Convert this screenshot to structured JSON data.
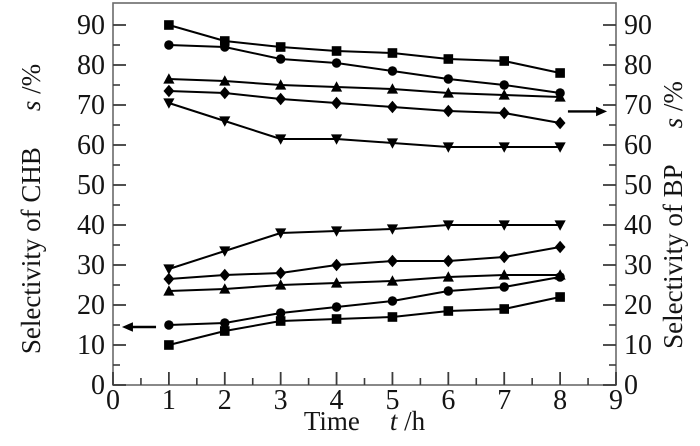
{
  "chart_data": {
    "type": "line",
    "title": "",
    "x": [
      1,
      2,
      3,
      4,
      5,
      6,
      7,
      8
    ],
    "x_axis": {
      "label_pre": "Time",
      "label_italic": "t",
      "label_post": " /h",
      "min": 0,
      "max": 9,
      "major_ticks": [
        0,
        1,
        2,
        3,
        4,
        5,
        6,
        7,
        8,
        9
      ],
      "minor_ticks": [
        0.5,
        1.5,
        2.5,
        3.5,
        4.5,
        5.5,
        6.5,
        7.5,
        8.5
      ]
    },
    "left_axis": {
      "label_pre": "Selectivity of CHB",
      "label_italic": "s",
      "label_post": " /%",
      "min": 0,
      "max": 95.5,
      "major_ticks": [
        0,
        10,
        20,
        30,
        40,
        50,
        60,
        70,
        80,
        90
      ],
      "minor_ticks": [
        5,
        15,
        25,
        35,
        45,
        55,
        65,
        75,
        85
      ]
    },
    "right_axis": {
      "label_pre": "Selectivity of BP",
      "label_italic": "s",
      "label_post": " /%",
      "min": 0,
      "max": 95.5,
      "major_ticks": [
        0,
        10,
        20,
        30,
        40,
        50,
        60,
        70,
        80,
        90
      ],
      "minor_ticks": [
        5,
        15,
        25,
        35,
        45,
        55,
        65,
        75,
        85
      ]
    },
    "series": [
      {
        "name": "bp-square",
        "marker": "square",
        "axis": "right",
        "values": [
          90,
          86,
          84.5,
          83.5,
          83,
          81.5,
          81,
          78
        ]
      },
      {
        "name": "bp-circle",
        "marker": "circle",
        "axis": "right",
        "values": [
          85,
          84.5,
          81.5,
          80.5,
          78.5,
          76.5,
          75,
          73
        ]
      },
      {
        "name": "bp-triangle-up",
        "marker": "triangle-up",
        "axis": "right",
        "values": [
          76.5,
          76,
          75,
          74.5,
          74,
          73,
          72.5,
          72
        ]
      },
      {
        "name": "bp-diamond",
        "marker": "diamond",
        "axis": "right",
        "values": [
          73.5,
          73,
          71.5,
          70.5,
          69.5,
          68.5,
          68,
          65.5
        ]
      },
      {
        "name": "bp-triangle-down",
        "marker": "triangle-down",
        "axis": "right",
        "values": [
          70.5,
          66,
          61.5,
          61.5,
          60.5,
          59.5,
          59.5,
          59.5
        ]
      },
      {
        "name": "chb-triangle-down",
        "marker": "triangle-down",
        "axis": "left",
        "values": [
          29,
          33.5,
          38,
          38.5,
          39,
          40,
          40,
          40
        ]
      },
      {
        "name": "chb-diamond",
        "marker": "diamond",
        "axis": "left",
        "values": [
          26.5,
          27.5,
          28,
          30,
          31,
          31,
          32,
          34.5
        ]
      },
      {
        "name": "chb-triangle-up",
        "marker": "triangle-up",
        "axis": "left",
        "values": [
          23.5,
          24,
          25,
          25.5,
          26,
          27,
          27.5,
          27.5
        ]
      },
      {
        "name": "chb-circle",
        "marker": "circle",
        "axis": "left",
        "values": [
          15,
          15.5,
          18,
          19.5,
          21,
          23.5,
          24.5,
          27
        ]
      },
      {
        "name": "chb-square",
        "marker": "square",
        "axis": "left",
        "values": [
          10,
          13.5,
          16,
          16.5,
          17,
          18.5,
          19,
          22
        ]
      }
    ],
    "arrows": [
      {
        "name": "chb-reads-left-axis-arrow",
        "direction": "left",
        "y": 14.5,
        "x_tip": 0.16,
        "x_tail": 0.77
      },
      {
        "name": "bp-reads-right-axis-arrow",
        "direction": "right",
        "y": 68.4,
        "x_tip": 8.84,
        "x_tail": 8.14
      }
    ],
    "style": {
      "series_color": "#000000",
      "frame_color": "#6b6b6b",
      "tick_color": "#3c3c3c",
      "text_color": "#141414",
      "line_width": 2,
      "tick_label_size": 28
    }
  }
}
